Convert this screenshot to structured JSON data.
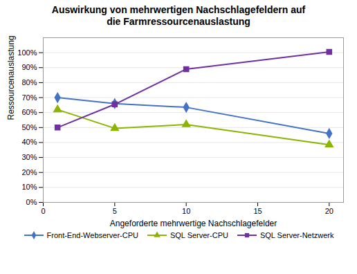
{
  "chart_data": {
    "type": "line",
    "title": "Auswirkung von mehrwertigen Nachschlagefeldern auf\ndie Farmressourcenauslastung",
    "xlabel": "Angeforderte mehrwertige Nachschlagefelder",
    "ylabel": "Ressourcenauslastung",
    "x": [
      1,
      5,
      10,
      20
    ],
    "series": [
      {
        "name": "Front-End-Webserver-CPU",
        "color": "#4472C4",
        "values": [
          0.7,
          0.66,
          0.635,
          0.46
        ],
        "marker": "diamond"
      },
      {
        "name": "SQL Server-CPU",
        "color": "#8CB400",
        "values": [
          0.62,
          0.495,
          0.52,
          0.385
        ],
        "marker": "triangle"
      },
      {
        "name": "SQL Server-Netzwerk",
        "color": "#7030A0",
        "values": [
          0.5,
          0.655,
          0.89,
          1.005
        ],
        "marker": "square"
      }
    ],
    "xlim": [
      0,
      21
    ],
    "ylim": [
      0,
      1.1
    ],
    "xticks": [
      0,
      5,
      10,
      15,
      20
    ],
    "yticks": [
      {
        "value": 0.0,
        "label": "0%"
      },
      {
        "value": 0.1,
        "label": "10%"
      },
      {
        "value": 0.2,
        "label": "20%"
      },
      {
        "value": 0.3,
        "label": "30%"
      },
      {
        "value": 0.4,
        "label": "40%"
      },
      {
        "value": 0.5,
        "label": "50%"
      },
      {
        "value": 0.6,
        "label": "60%"
      },
      {
        "value": 0.7,
        "label": "70%"
      },
      {
        "value": 0.8,
        "label": "80%"
      },
      {
        "value": 0.9,
        "label": "90%"
      },
      {
        "value": 1.0,
        "label": "100%"
      }
    ],
    "grid": true,
    "legend": "bottom"
  }
}
